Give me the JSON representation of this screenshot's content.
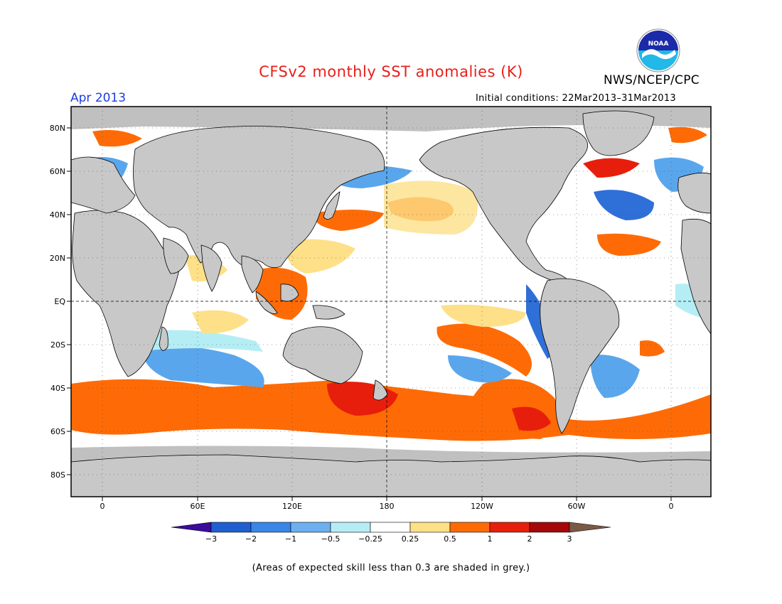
{
  "title": "CFSv2 monthly SST anomalies (K)",
  "month": "Apr 2013",
  "organization": "NWS/NCEP/CPC",
  "logo_text": "NOAA",
  "initial_conditions": "Initial conditions: 22Mar2013–31Mar2013",
  "footnote": "(Areas of expected skill less than 0.3 are shaded in grey.)",
  "map": {
    "lat_labels": [
      "80N",
      "60N",
      "40N",
      "20N",
      "EQ",
      "20S",
      "40S",
      "60S",
      "80S"
    ],
    "lon_labels": [
      "0",
      "60E",
      "120E",
      "180",
      "120W",
      "60W",
      "0"
    ],
    "land_color": "#c8c8c8",
    "skill_mask_color": "#c0c0c0"
  },
  "colorbar": {
    "labels": [
      "−3",
      "−2",
      "−1",
      "−0.5",
      "−0.25",
      "0.25",
      "0.5",
      "1",
      "2",
      "3"
    ],
    "colors": [
      "#3a0c9c",
      "#1f5fd0",
      "#3a86e8",
      "#6cb0f0",
      "#b4eef4",
      "#ffffff",
      "#fde088",
      "#fe6b06",
      "#e81e0c",
      "#a50808",
      "#7a5a46"
    ]
  },
  "anomaly_colors": {
    "strong_neg": "#2f6fd8",
    "neg": "#5aa6ec",
    "weak_neg": "#b4eef4",
    "weak_pos": "#fde088",
    "pos": "#fe6b06",
    "strong_pos": "#e81e0c"
  }
}
